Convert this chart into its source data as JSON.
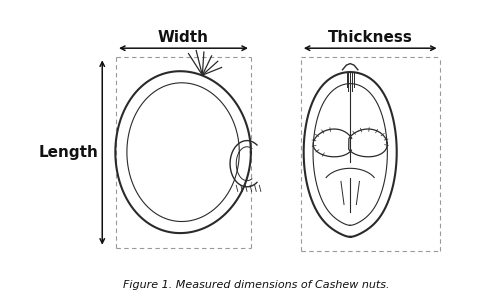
{
  "title": "Figure 1. Measured dimensions of Cashew nuts.",
  "background_color": "#ffffff",
  "line_color": "#2a2a2a",
  "dashed_color": "#999999",
  "arrow_color": "#111111",
  "text_color": "#111111",
  "width_label": "Width",
  "thickness_label": "Thickness",
  "length_label": "Length",
  "fig_width": 5.0,
  "fig_height": 2.99,
  "dpi": 100
}
